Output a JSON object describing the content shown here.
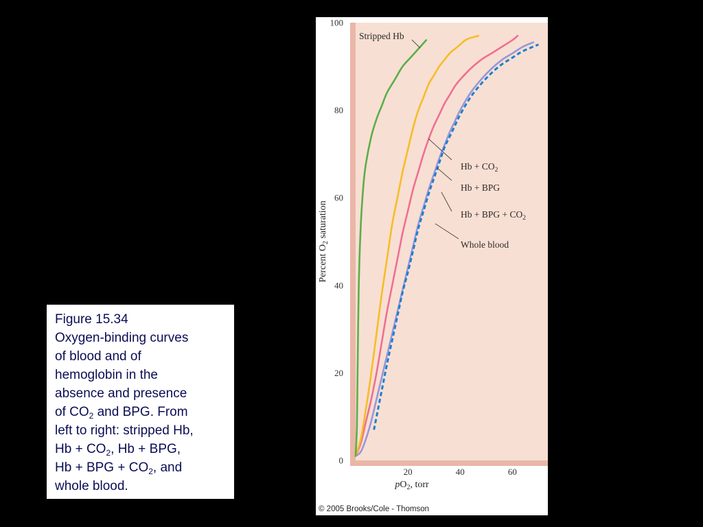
{
  "caption": {
    "lines": [
      {
        "parts": [
          "Figure 15.34"
        ]
      },
      {
        "parts": [
          "Oxygen-binding curves"
        ]
      },
      {
        "parts": [
          "of blood and of"
        ]
      },
      {
        "parts": [
          "hemoglobin in the"
        ]
      },
      {
        "parts": [
          "absence and presence"
        ]
      },
      {
        "parts": [
          "of CO",
          "2",
          " and BPG. From"
        ]
      },
      {
        "parts": [
          "left to right: stripped Hb,"
        ]
      },
      {
        "parts": [
          "Hb + CO",
          "2",
          ", Hb + BPG,"
        ]
      },
      {
        "parts": [
          "Hb + BPG + CO",
          "2",
          ", and"
        ]
      },
      {
        "parts": [
          "whole blood."
        ]
      }
    ]
  },
  "copyright": "© 2005 Brooks/Cole - Thomson",
  "chart_data": {
    "type": "line",
    "title": "",
    "xlabel": {
      "italic": "p",
      "main": "O",
      "sub": "2",
      "rest": ", torr"
    },
    "ylabel": {
      "main": "Percent O",
      "sub": "2",
      "rest": " saturation"
    },
    "xlim": [
      0,
      70
    ],
    "ylim": [
      0,
      100
    ],
    "xticks": [
      20,
      40,
      60
    ],
    "yticks": [
      0,
      20,
      40,
      60,
      80,
      100
    ],
    "grid": false,
    "colors": {
      "panel": "#f8dfd3",
      "axis_band": "#e9b7a7",
      "tick_text": "#333333"
    },
    "series": [
      {
        "name": "Stripped Hb",
        "color": "#5aaf48",
        "dashed": false,
        "x": [
          0,
          0.5,
          0.8,
          1.2,
          2,
          3,
          4,
          6,
          8,
          10,
          12,
          15,
          18,
          21,
          24,
          27
        ],
        "y": [
          1,
          8,
          22,
          40,
          54,
          63,
          68,
          74,
          78,
          81,
          84,
          87,
          90,
          92,
          94,
          96
        ]
      },
      {
        "name": "Hb + CO₂",
        "color": "#f6bd26",
        "dashed": false,
        "x": [
          0,
          2,
          4,
          6,
          8,
          10,
          12,
          14,
          16,
          18,
          20,
          22,
          24,
          26,
          28,
          30,
          32,
          34,
          36,
          38,
          40,
          42,
          44,
          47
        ],
        "y": [
          1,
          5,
          12,
          20,
          29,
          38,
          46,
          54,
          60,
          66,
          71,
          76,
          80,
          83,
          86,
          88,
          90,
          91.5,
          93,
          94,
          95,
          96,
          96.5,
          97
        ]
      },
      {
        "name": "Hb + BPG",
        "color": "#ef6f92",
        "dashed": false,
        "x": [
          0,
          2,
          4,
          6,
          8,
          10,
          12,
          14,
          16,
          18,
          20,
          22,
          24,
          26,
          28,
          30,
          32,
          34,
          36,
          38,
          40,
          44,
          48,
          52,
          56,
          60,
          62
        ],
        "y": [
          1,
          4,
          9,
          14,
          20,
          27,
          34,
          40,
          46,
          52,
          57,
          62,
          66,
          70,
          73.5,
          76.5,
          79,
          81.5,
          83.5,
          85.5,
          87,
          89.5,
          91.5,
          93,
          94.5,
          96,
          97
        ]
      },
      {
        "name": "Hb + BPG + CO₂",
        "color": "#9898d8",
        "dashed": false,
        "x": [
          0,
          2,
          4,
          6,
          8,
          10,
          12,
          14,
          16,
          18,
          20,
          22,
          24,
          26,
          28,
          30,
          32,
          34,
          36,
          38,
          40,
          44,
          48,
          52,
          56,
          60,
          64,
          68
        ],
        "y": [
          1,
          2,
          5,
          9,
          14,
          19,
          24,
          29,
          34,
          39,
          44,
          49,
          54,
          58,
          62,
          65.5,
          69,
          72,
          75,
          77.5,
          80,
          84,
          87,
          89.5,
          91.5,
          93,
          94.5,
          95.5
        ]
      },
      {
        "name": "Whole blood",
        "color": "#1c7fcf",
        "dashed": true,
        "x": [
          7,
          8,
          10,
          12,
          14,
          16,
          18,
          20,
          22,
          24,
          26,
          28,
          30,
          32,
          34,
          36,
          38,
          40,
          44,
          48,
          52,
          56,
          60,
          64,
          70
        ],
        "y": [
          7,
          10,
          16,
          22,
          27.5,
          33,
          38.5,
          43,
          48,
          53,
          57,
          61,
          64.5,
          68,
          71.5,
          74,
          76.5,
          79,
          83,
          86,
          88.5,
          90.5,
          92,
          93.5,
          95
        ]
      }
    ],
    "annotations": [
      {
        "text": "Stripped Hb",
        "series": 0
      },
      {
        "text": "Hb + CO",
        "sub": "2",
        "series": 1
      },
      {
        "text": "Hb + BPG",
        "series": 2
      },
      {
        "text": "Hb + BPG + CO",
        "sub": "2",
        "series": 3
      },
      {
        "text": "Whole blood",
        "series": 4
      }
    ]
  }
}
